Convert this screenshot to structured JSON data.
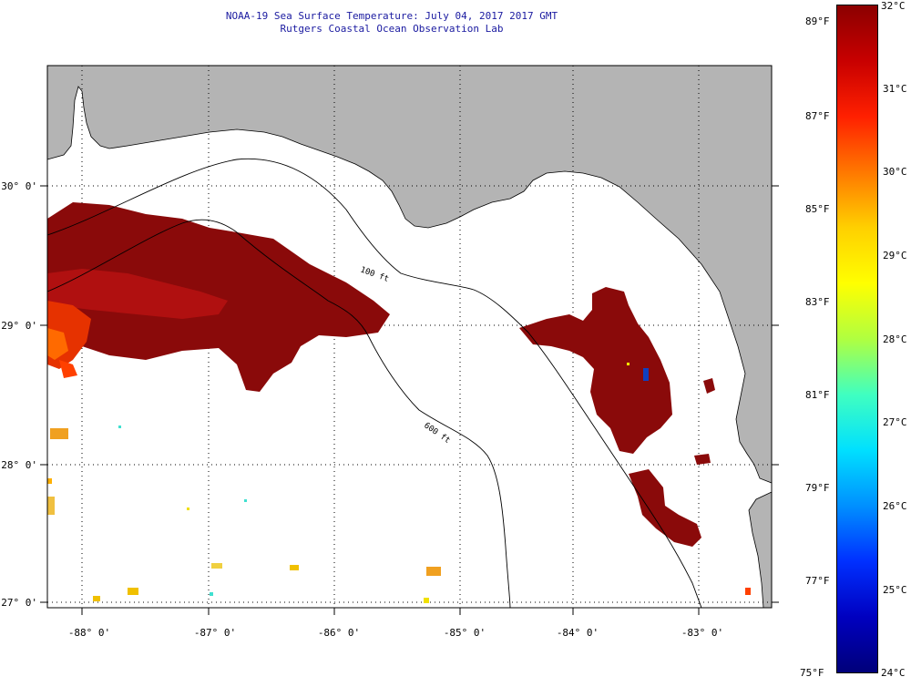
{
  "title_line1": "NOAA-19 Sea Surface Temperature:  July 04, 2017 2017 GMT",
  "title_line2": "Rutgers Coastal Ocean Observation Lab",
  "map": {
    "lon_labels": [
      "-88° 0'",
      "-87° 0'",
      "-86° 0'",
      "-85° 0'",
      "-84° 0'",
      "-83° 0'"
    ],
    "lat_labels": [
      "30° 0'",
      "29° 0'",
      "28° 0'",
      "27° 0'"
    ],
    "contour_labels": [
      "100 ft",
      "600 ft"
    ],
    "land_color": "#b4b4b4",
    "warm_water_color": "#8a0a0a"
  },
  "colorbar": {
    "celsius_labels": [
      "32°C",
      "31°C",
      "30°C",
      "29°C",
      "28°C",
      "27°C",
      "26°C",
      "25°C",
      "24°C"
    ],
    "fahrenheit_labels": [
      "89°F",
      "87°F",
      "85°F",
      "83°F",
      "81°F",
      "79°F",
      "77°F",
      "75°F"
    ],
    "colors": [
      "#8b0000",
      "#c80000",
      "#ff2000",
      "#ff7800",
      "#ffd000",
      "#ffff00",
      "#b0ff40",
      "#40ffc0",
      "#00e0ff",
      "#0090ff",
      "#0030ff",
      "#0000c0",
      "#00007a"
    ]
  }
}
